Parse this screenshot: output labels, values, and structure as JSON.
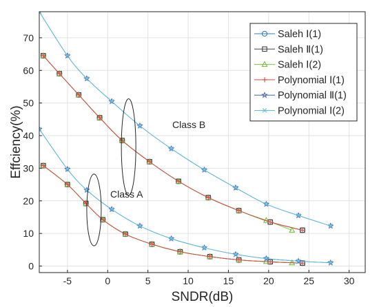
{
  "chart_data": {
    "type": "line",
    "xlabel": "SNDR(dB)",
    "ylabel": "Effciency(%)",
    "xlim": [
      -8.5,
      32
    ],
    "ylim": [
      -2,
      78
    ],
    "xticks": [
      -5,
      0,
      5,
      10,
      15,
      20,
      25,
      30
    ],
    "yticks": [
      0,
      10,
      20,
      30,
      40,
      50,
      60,
      70
    ],
    "grid": true,
    "legend_position": "top-right",
    "annotations": [
      {
        "text": "Class B",
        "ellipse_center": [
          2.6,
          36.5
        ],
        "ellipse_radius": [
          0.9,
          14.8
        ]
      },
      {
        "text": "Class A",
        "ellipse_center": [
          -1.7,
          17.2
        ],
        "ellipse_radius": [
          0.9,
          11.0
        ]
      }
    ],
    "series": [
      {
        "name": "Saleh Ⅰ(1)",
        "color": "#2f7fb5",
        "marker": "circle",
        "group": "Class B",
        "x": [
          -8,
          -6,
          -3.6,
          -1,
          1.8,
          5.2,
          8.8,
          12.5,
          16.3,
          20.2,
          24.2
        ],
        "y": [
          64.5,
          59,
          52.5,
          45.5,
          38.5,
          32,
          26,
          21,
          17,
          13.5,
          11
        ]
      },
      {
        "name": "Saleh Ⅱ(1)",
        "color": "#444444",
        "marker": "square",
        "group": "Class B",
        "x": [
          -8,
          -6,
          -3.6,
          -1,
          1.8,
          5.2,
          8.8,
          12.5,
          16.3,
          20.2,
          24.2
        ],
        "y": [
          64.5,
          59,
          52.5,
          45.5,
          38.5,
          32,
          26,
          21,
          17,
          13.5,
          11
        ]
      },
      {
        "name": "Saleh Ⅰ(2)",
        "color": "#77bf3c",
        "marker": "triangle",
        "group": "Class B",
        "x": [
          -8,
          -6,
          -3.6,
          -1,
          1.8,
          5.2,
          8.8,
          12.5,
          16.3,
          19.7,
          22.9
        ],
        "y": [
          64.5,
          59,
          52.5,
          45.5,
          38.5,
          32,
          26,
          21,
          17,
          14,
          11
        ]
      },
      {
        "name": "Polynomial Ⅰ(1)",
        "color": "#e0463a",
        "marker": "plus",
        "group": "Class B",
        "x": [
          -8,
          -6,
          -3.6,
          -1,
          1.8,
          5.2,
          8.8,
          12.5,
          16.3,
          20.2,
          24.2
        ],
        "y": [
          64.5,
          59,
          52.5,
          45.5,
          38.5,
          32,
          26,
          21,
          17,
          13.5,
          11
        ]
      },
      {
        "name": "Polynomial Ⅱ(1)",
        "color": "#4a5ea8",
        "marker": "star",
        "group": "Class B",
        "x": [
          -8.5,
          -5,
          -2.6,
          0.5,
          4,
          7.9,
          12,
          15.9,
          19.7,
          23.7,
          27.7
        ],
        "y": [
          78,
          64.5,
          57.5,
          50.5,
          43,
          36,
          29.5,
          24,
          19,
          15.5,
          12.3
        ]
      },
      {
        "name": "Polynomial Ⅰ(2)",
        "color": "#5bc0e0",
        "marker": "x",
        "group": "Class B",
        "x": [
          -8.5,
          -5,
          -2.6,
          0.5,
          4,
          7.9,
          12,
          15.9,
          19.7,
          23.7,
          27.7
        ],
        "y": [
          78,
          64.5,
          57.5,
          50.5,
          43,
          36,
          29.5,
          24,
          19,
          15.5,
          12.3
        ]
      },
      {
        "name": "Saleh Ⅰ(1)",
        "color": "#2f7fb5",
        "marker": "circle",
        "group": "Class A",
        "x": [
          -8,
          -5,
          -2.7,
          -0.6,
          2.2,
          5.5,
          9,
          12.7,
          16.3,
          20.2,
          24.2
        ],
        "y": [
          30.8,
          25,
          19.2,
          14.2,
          9.8,
          6.7,
          4.4,
          2.9,
          1.9,
          1.3,
          0.9
        ]
      },
      {
        "name": "Saleh Ⅱ(1)",
        "color": "#444444",
        "marker": "square",
        "group": "Class A",
        "x": [
          -8,
          -5,
          -2.7,
          -0.6,
          2.2,
          5.5,
          9,
          12.7,
          16.3,
          20.2,
          24.2
        ],
        "y": [
          30.8,
          25,
          19.2,
          14.2,
          9.8,
          6.7,
          4.4,
          2.9,
          1.9,
          1.3,
          0.9
        ]
      },
      {
        "name": "Saleh Ⅰ(2)",
        "color": "#77bf3c",
        "marker": "triangle",
        "group": "Class A",
        "x": [
          -8,
          -5,
          -2.7,
          -0.6,
          2.2,
          5.5,
          9,
          12.7,
          16.3,
          19.7,
          22.9
        ],
        "y": [
          30.8,
          25,
          19.2,
          14.2,
          9.8,
          6.7,
          4.4,
          2.9,
          1.9,
          1.4,
          1.0
        ]
      },
      {
        "name": "Polynomial Ⅰ(1)",
        "color": "#e0463a",
        "marker": "plus",
        "group": "Class A",
        "x": [
          -8,
          -5,
          -2.7,
          -0.6,
          2.2,
          5.5,
          9,
          12.7,
          16.3,
          20.2,
          24.2
        ],
        "y": [
          30.8,
          25,
          19.2,
          14.2,
          9.8,
          6.7,
          4.4,
          2.9,
          1.9,
          1.3,
          0.9
        ]
      },
      {
        "name": "Polynomial Ⅱ(1)",
        "color": "#4a5ea8",
        "marker": "star",
        "group": "Class A",
        "x": [
          -8.5,
          -5,
          -2.6,
          0.5,
          4,
          7.9,
          12,
          15.9,
          19.7,
          23.7,
          27.7
        ],
        "y": [
          42,
          29.7,
          23.3,
          17.4,
          12.3,
          8.4,
          5.6,
          3.6,
          2.3,
          1.5,
          1.0
        ]
      },
      {
        "name": "Polynomial Ⅰ(2)",
        "color": "#5bc0e0",
        "marker": "x",
        "group": "Class A",
        "x": [
          -8.5,
          -5,
          -2.6,
          0.5,
          4,
          7.9,
          12,
          15.9,
          19.7,
          23.7,
          27.7
        ],
        "y": [
          42,
          29.7,
          23.3,
          17.4,
          12.3,
          8.4,
          5.6,
          3.6,
          2.3,
          1.5,
          1.0
        ]
      }
    ],
    "legend": [
      {
        "label": "Saleh Ⅰ(1)",
        "color": "#2f7fb5",
        "marker": "circle"
      },
      {
        "label": "Saleh Ⅱ(1)",
        "color": "#444444",
        "marker": "square"
      },
      {
        "label": "Saleh Ⅰ(2)",
        "color": "#77bf3c",
        "marker": "triangle"
      },
      {
        "label": "Polynomial Ⅰ(1)",
        "color": "#e0463a",
        "marker": "plus"
      },
      {
        "label": "Polynomial Ⅱ(1)",
        "color": "#4a5ea8",
        "marker": "star"
      },
      {
        "label": "Polynomial Ⅰ(2)",
        "color": "#5bc0e0",
        "marker": "x"
      }
    ]
  }
}
